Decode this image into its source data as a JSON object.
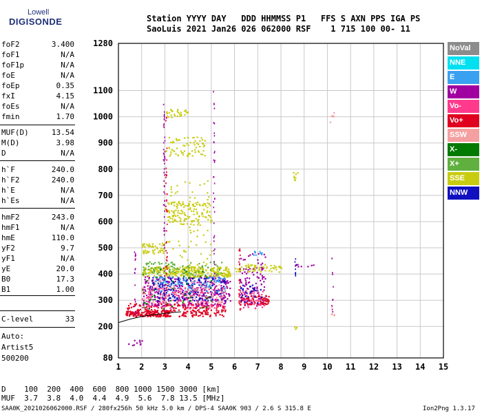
{
  "logo": {
    "line1": "Lowell",
    "line2": "DIGISONDE"
  },
  "header": {
    "row1": "Station YYYY DAY   DDD HHMMSS P1   FFS S AXN PPS IGA PS",
    "row2": "SaoLuis 2021 Jan26 026 062000 RSF    1 715 100 00- 11"
  },
  "params": [
    {
      "name": "foF2",
      "value": "3.400"
    },
    {
      "name": "foF1",
      "value": "N/A"
    },
    {
      "name": "foF1p",
      "value": "N/A"
    },
    {
      "name": "foE",
      "value": "N/A"
    },
    {
      "name": "foEp",
      "value": "0.35"
    },
    {
      "name": "fxI",
      "value": "4.15"
    },
    {
      "name": "foEs",
      "value": "N/A"
    },
    {
      "name": "fmin",
      "value": "1.70"
    },
    {
      "name": "MUF(D)",
      "value": "13.54"
    },
    {
      "name": "M(D)",
      "value": "3.98"
    },
    {
      "name": "D",
      "value": "N/A"
    },
    {
      "name": "h`F",
      "value": "240.0"
    },
    {
      "name": "h`F2",
      "value": "240.0"
    },
    {
      "name": "h`E",
      "value": "N/A"
    },
    {
      "name": "h`Es",
      "value": "N/A"
    },
    {
      "name": "hmF2",
      "value": "243.0"
    },
    {
      "name": "hmF1",
      "value": "N/A"
    },
    {
      "name": "hmE",
      "value": "110.0"
    },
    {
      "name": "yF2",
      "value": "9.7"
    },
    {
      "name": "yF1",
      "value": "N/A"
    },
    {
      "name": "yE",
      "value": "20.0"
    },
    {
      "name": "B0",
      "value": "17.3"
    },
    {
      "name": "B1",
      "value": "1.00"
    },
    {
      "name": "C-level",
      "value": "33"
    }
  ],
  "auto": {
    "line1": "Auto:",
    "line2": "Artist5",
    "line3": "500200"
  },
  "legend": [
    {
      "label": "NoVal",
      "color": "#8c8c8c"
    },
    {
      "label": "NNE",
      "color": "#00e0f0"
    },
    {
      "label": "E",
      "color": "#3aa0f0"
    },
    {
      "label": "W",
      "color": "#a000a0"
    },
    {
      "label": "Vo-",
      "color": "#ff3a8c"
    },
    {
      "label": "Vo+",
      "color": "#e00020"
    },
    {
      "label": "SSW",
      "color": "#f5a0a0"
    },
    {
      "label": "X-",
      "color": "#007a00"
    },
    {
      "label": "X+",
      "color": "#60b040"
    },
    {
      "label": "SSE",
      "color": "#c8cc10"
    },
    {
      "label": "NNW",
      "color": "#1010c0"
    }
  ],
  "footer": {
    "d_row": "D    100  200  400  600  800 1000 1500 3000 [km]",
    "muf_row": "MUF  3.7  3.8  4.0  4.4  4.9  5.6  7.8 13.5 [MHz]",
    "file_line": "SAA0K_2021026062000.RSF / 280fx256h 50 kHz 5.0 km / DPS-4 SAA0K 903 / 2.6 S 315.8 E",
    "version": "Ion2Png 1.3.17"
  },
  "chart_data": {
    "type": "scatter",
    "xlim": [
      1,
      15
    ],
    "ylim": [
      80,
      1280
    ],
    "x_ticks": [
      "1",
      "2",
      "3",
      "4",
      "5",
      "6",
      "7",
      "8",
      "9",
      "10",
      "11",
      "12",
      "13",
      "14",
      "15"
    ],
    "y_ticks": [
      {
        "label": "80",
        "value": 80
      },
      {
        "label": "200",
        "value": 200
      },
      {
        "label": "300",
        "value": 300
      },
      {
        "label": "400",
        "value": 400
      },
      {
        "label": "500",
        "value": 500
      },
      {
        "label": "600",
        "value": 600
      },
      {
        "label": "700",
        "value": 700
      },
      {
        "label": "800",
        "value": 800
      },
      {
        "label": "900",
        "value": 900
      },
      {
        "label": "1000",
        "value": 1000
      },
      {
        "label": "1100",
        "value": 1100
      },
      {
        "label": "1280",
        "value": 1280
      }
    ],
    "grid": true,
    "legend_position": "right",
    "trace_curve": [
      [
        1.0,
        215
      ],
      [
        1.5,
        228
      ],
      [
        2.0,
        238
      ],
      [
        2.5,
        245
      ],
      [
        3.0,
        250
      ],
      [
        3.4,
        254
      ],
      [
        3.7,
        256
      ]
    ],
    "clusters": [
      {
        "color": "#e00020",
        "x": [
          1.3,
          5.6
        ],
        "y": [
          240,
          290
        ],
        "n": 260
      },
      {
        "color": "#e00020",
        "x": [
          1.3,
          3.2
        ],
        "y": [
          240,
          262
        ],
        "n": 120
      },
      {
        "color": "#a000a0",
        "x": [
          2.0,
          5.8
        ],
        "y": [
          280,
          400
        ],
        "n": 340
      },
      {
        "color": "#1010c0",
        "x": [
          2.3,
          5.6
        ],
        "y": [
          300,
          390
        ],
        "n": 200
      },
      {
        "color": "#3aa0f0",
        "x": [
          2.5,
          5.6
        ],
        "y": [
          330,
          400
        ],
        "n": 110
      },
      {
        "color": "#ff3a8c",
        "x": [
          2.0,
          5.6
        ],
        "y": [
          270,
          350
        ],
        "n": 160
      },
      {
        "color": "#c8cc10",
        "x": [
          2.0,
          5.8
        ],
        "y": [
          392,
          430
        ],
        "n": 300
      },
      {
        "color": "#c8cc10",
        "x": [
          2.0,
          3.0
        ],
        "y": [
          480,
          520
        ],
        "n": 50
      },
      {
        "color": "#c8cc10",
        "x": [
          3.0,
          5.0
        ],
        "y": [
          590,
          680
        ],
        "n": 120
      },
      {
        "color": "#c8cc10",
        "x": [
          3.0,
          4.7
        ],
        "y": [
          850,
          925
        ],
        "n": 70
      },
      {
        "color": "#c8cc10",
        "x": [
          3.0,
          4.0
        ],
        "y": [
          1000,
          1030
        ],
        "n": 30
      },
      {
        "color": "#c8cc10",
        "x": [
          3.0,
          5.0
        ],
        "y": [
          420,
          760
        ],
        "n": 80
      },
      {
        "color": "#60b040",
        "x": [
          2.0,
          5.5
        ],
        "y": [
          400,
          450
        ],
        "n": 90
      },
      {
        "color": "#007a00",
        "x": [
          2.0,
          5.0
        ],
        "y": [
          270,
          420
        ],
        "n": 50
      },
      {
        "color": "#f5a0a0",
        "x": [
          2.0,
          5.6
        ],
        "y": [
          290,
          380
        ],
        "n": 70
      },
      {
        "color": "#a000a0",
        "x": [
          6.2,
          7.3
        ],
        "y": [
          280,
          480
        ],
        "n": 110
      },
      {
        "color": "#ff3a8c",
        "x": [
          6.2,
          7.3
        ],
        "y": [
          270,
          340
        ],
        "n": 60
      },
      {
        "color": "#c8cc10",
        "x": [
          6.0,
          8.0
        ],
        "y": [
          410,
          440
        ],
        "n": 60
      },
      {
        "color": "#e00020",
        "x": [
          6.2,
          7.5
        ],
        "y": [
          285,
          320
        ],
        "n": 60
      },
      {
        "color": "#1010c0",
        "x": [
          6.2,
          7.2
        ],
        "y": [
          290,
          360
        ],
        "n": 30
      },
      {
        "color": "#3aa0f0",
        "x": [
          6.8,
          7.2
        ],
        "y": [
          470,
          490
        ],
        "n": 10
      },
      {
        "color": "#a000a0",
        "x": [
          1.4,
          2.0
        ],
        "y": [
          130,
          150
        ],
        "n": 10
      },
      {
        "color": "#c8cc10",
        "x": [
          8.5,
          8.7
        ],
        "y": [
          760,
          790
        ],
        "n": 8
      },
      {
        "color": "#c8cc10",
        "x": [
          8.5,
          8.7
        ],
        "y": [
          190,
          210
        ],
        "n": 4
      },
      {
        "color": "#a000a0",
        "x": [
          8.4,
          9.4
        ],
        "y": [
          430,
          445
        ],
        "n": 8
      },
      {
        "color": "#f5a0a0",
        "x": [
          10.1,
          10.3
        ],
        "y": [
          980,
          1020
        ],
        "n": 6
      },
      {
        "color": "#f5a0a0",
        "x": [
          10.1,
          10.3
        ],
        "y": [
          240,
          280
        ],
        "n": 5
      }
    ],
    "columns": [
      {
        "x": 2.95,
        "y": [
          260,
          1050
        ],
        "color": "#a000a0",
        "n": 60
      },
      {
        "x": 3.05,
        "y": [
          260,
          1000
        ],
        "color": "#e00020",
        "n": 40
      },
      {
        "x": 5.1,
        "y": [
          280,
          1110
        ],
        "color": "#a000a0",
        "n": 40
      },
      {
        "x": 6.2,
        "y": [
          260,
          500
        ],
        "color": "#e00020",
        "n": 25
      },
      {
        "x": 1.7,
        "y": [
          240,
          500
        ],
        "color": "#a000a0",
        "n": 20
      },
      {
        "x": 8.6,
        "y": [
          390,
          470
        ],
        "color": "#1010c0",
        "n": 8
      },
      {
        "x": 10.2,
        "y": [
          250,
          480
        ],
        "color": "#a000a0",
        "n": 10
      }
    ]
  }
}
